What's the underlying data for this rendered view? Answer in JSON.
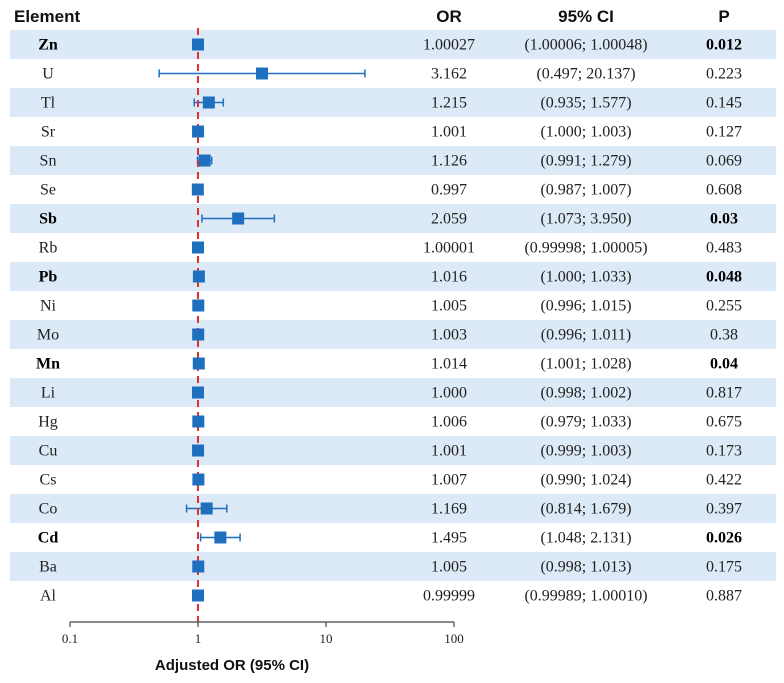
{
  "chart_data": {
    "type": "forest",
    "xscale": "log",
    "xlim": [
      0.1,
      100
    ],
    "xticks": [
      "0.1",
      "1",
      "10",
      "100"
    ],
    "xtick_values": [
      0.1,
      1,
      10,
      100
    ],
    "reference_line": 1,
    "xlabel": "Adjusted OR (95% CI)",
    "headers": {
      "element": "Element",
      "or": "OR",
      "ci": "95% CI",
      "p": "P"
    },
    "colors": {
      "marker": "#1f6fbf",
      "refline": "#e03030",
      "band": "#dce9f6",
      "axis": "#444444"
    },
    "rows": [
      {
        "element": "Zn",
        "or_text": "1.00027",
        "ci_text": "(1.00006; 1.00048)",
        "p": "0.012",
        "sig": true,
        "or": 1.00027,
        "lo": 1.00006,
        "hi": 1.00048
      },
      {
        "element": "U",
        "or_text": "3.162",
        "ci_text": "(0.497; 20.137)",
        "p": "0.223",
        "sig": false,
        "or": 3.162,
        "lo": 0.497,
        "hi": 20.137
      },
      {
        "element": "Tl",
        "or_text": "1.215",
        "ci_text": "(0.935; 1.577)",
        "p": "0.145",
        "sig": false,
        "or": 1.215,
        "lo": 0.935,
        "hi": 1.577
      },
      {
        "element": "Sr",
        "or_text": "1.001",
        "ci_text": "(1.000; 1.003)",
        "p": "0.127",
        "sig": false,
        "or": 1.001,
        "lo": 1.0,
        "hi": 1.003
      },
      {
        "element": "Sn",
        "or_text": "1.126",
        "ci_text": "(0.991; 1.279)",
        "p": "0.069",
        "sig": false,
        "or": 1.126,
        "lo": 0.991,
        "hi": 1.279
      },
      {
        "element": "Se",
        "or_text": "0.997",
        "ci_text": "(0.987; 1.007)",
        "p": "0.608",
        "sig": false,
        "or": 0.997,
        "lo": 0.987,
        "hi": 1.007
      },
      {
        "element": "Sb",
        "or_text": "2.059",
        "ci_text": "(1.073; 3.950)",
        "p": "0.03",
        "sig": true,
        "or": 2.059,
        "lo": 1.073,
        "hi": 3.95
      },
      {
        "element": "Rb",
        "or_text": "1.00001",
        "ci_text": "(0.99998; 1.00005)",
        "p": "0.483",
        "sig": false,
        "or": 1.00001,
        "lo": 0.99998,
        "hi": 1.00005
      },
      {
        "element": "Pb",
        "or_text": "1.016",
        "ci_text": "(1.000; 1.033)",
        "p": "0.048",
        "sig": true,
        "or": 1.016,
        "lo": 1.0,
        "hi": 1.033
      },
      {
        "element": "Ni",
        "or_text": "1.005",
        "ci_text": "(0.996; 1.015)",
        "p": "0.255",
        "sig": false,
        "or": 1.005,
        "lo": 0.996,
        "hi": 1.015
      },
      {
        "element": "Mo",
        "or_text": "1.003",
        "ci_text": "(0.996; 1.011)",
        "p": "0.38",
        "sig": false,
        "or": 1.003,
        "lo": 0.996,
        "hi": 1.011
      },
      {
        "element": "Mn",
        "or_text": "1.014",
        "ci_text": "(1.001; 1.028)",
        "p": "0.04",
        "sig": true,
        "or": 1.014,
        "lo": 1.001,
        "hi": 1.028
      },
      {
        "element": "Li",
        "or_text": "1.000",
        "ci_text": "(0.998; 1.002)",
        "p": "0.817",
        "sig": false,
        "or": 1.0,
        "lo": 0.998,
        "hi": 1.002
      },
      {
        "element": "Hg",
        "or_text": "1.006",
        "ci_text": "(0.979; 1.033)",
        "p": "0.675",
        "sig": false,
        "or": 1.006,
        "lo": 0.979,
        "hi": 1.033
      },
      {
        "element": "Cu",
        "or_text": "1.001",
        "ci_text": "(0.999; 1.003)",
        "p": "0.173",
        "sig": false,
        "or": 1.001,
        "lo": 0.999,
        "hi": 1.003
      },
      {
        "element": "Cs",
        "or_text": "1.007",
        "ci_text": "(0.990; 1.024)",
        "p": "0.422",
        "sig": false,
        "or": 1.007,
        "lo": 0.99,
        "hi": 1.024
      },
      {
        "element": "Co",
        "or_text": "1.169",
        "ci_text": "(0.814; 1.679)",
        "p": "0.397",
        "sig": false,
        "or": 1.169,
        "lo": 0.814,
        "hi": 1.679
      },
      {
        "element": "Cd",
        "or_text": "1.495",
        "ci_text": "(1.048; 2.131)",
        "p": "0.026",
        "sig": true,
        "or": 1.495,
        "lo": 1.048,
        "hi": 2.131
      },
      {
        "element": "Ba",
        "or_text": "1.005",
        "ci_text": "(0.998; 1.013)",
        "p": "0.175",
        "sig": false,
        "or": 1.005,
        "lo": 0.998,
        "hi": 1.013
      },
      {
        "element": "Al",
        "or_text": "0.99999",
        "ci_text": "(0.99989; 1.00010)",
        "p": "0.887",
        "sig": false,
        "or": 0.99999,
        "lo": 0.99989,
        "hi": 1.0001
      }
    ]
  }
}
